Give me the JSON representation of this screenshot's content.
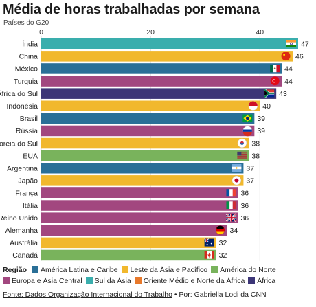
{
  "chart_data": {
    "type": "bar",
    "orientation": "horizontal",
    "title": "Média de horas trabalhadas por semana",
    "subtitle": "Países do G20",
    "xlim": [
      0,
      47
    ],
    "xticks": [
      0,
      20,
      40
    ],
    "grid": true,
    "categories": [
      "Índia",
      "China",
      "México",
      "Turquia",
      "África do Sul",
      "Indonésia",
      "Brasil",
      "Rússia",
      "Coreia do Sul",
      "EUA",
      "Argentina",
      "Japão",
      "França",
      "Itália",
      "Reino Unido",
      "Alemanha",
      "Austrália",
      "Canadá"
    ],
    "values": [
      47,
      46,
      44,
      44,
      43,
      40,
      39,
      39,
      38,
      38,
      37,
      37,
      36,
      36,
      36,
      34,
      32,
      32
    ],
    "region_of_bar": [
      "Sul da Ásia",
      "Leste da Ásia e Pacífico",
      "América Latina e Caribe",
      "Europa e Ásia Central",
      "África",
      "Leste da Ásia e Pacífico",
      "América Latina e Caribe",
      "Europa e Ásia Central",
      "Leste da Ásia e Pacífico",
      "América do Norte",
      "América Latina e Caribe",
      "Leste da Ásia e Pacífico",
      "Europa e Ásia Central",
      "Europa e Ásia Central",
      "Europa e Ásia Central",
      "Europa e Ásia Central",
      "Leste da Ásia e Pacífico",
      "América do Norte"
    ],
    "flag_icons": [
      "flag-india-icon",
      "flag-china-icon",
      "flag-mexico-icon",
      "flag-turkey-icon",
      "flag-south-africa-icon",
      "flag-indonesia-icon",
      "flag-brazil-icon",
      "flag-russia-icon",
      "flag-south-korea-icon",
      "flag-usa-icon",
      "flag-argentina-icon",
      "flag-japan-icon",
      "flag-france-icon",
      "flag-italy-icon",
      "flag-uk-icon",
      "flag-germany-icon",
      "flag-australia-icon",
      "flag-canada-icon"
    ]
  },
  "legend": {
    "title": "Região",
    "items": [
      {
        "name": "América Latina e Caribe",
        "color": "#2a6f97"
      },
      {
        "name": "Leste da Ásia e Pacífico",
        "color": "#f1b82d"
      },
      {
        "name": "América do Norte",
        "color": "#79b35c"
      },
      {
        "name": "Europa e Ásia Central",
        "color": "#a2477f"
      },
      {
        "name": "Sul da Ásia",
        "color": "#3aaead"
      },
      {
        "name": "Oriente Médio e Norte da África",
        "color": "#e8792b"
      },
      {
        "name": "África",
        "color": "#3c3577"
      }
    ]
  },
  "source": {
    "link_text": "Fonte: Dados Organização Internacional do Trabalho",
    "credit": " • Por: Gabriella Lodi da CNN"
  }
}
